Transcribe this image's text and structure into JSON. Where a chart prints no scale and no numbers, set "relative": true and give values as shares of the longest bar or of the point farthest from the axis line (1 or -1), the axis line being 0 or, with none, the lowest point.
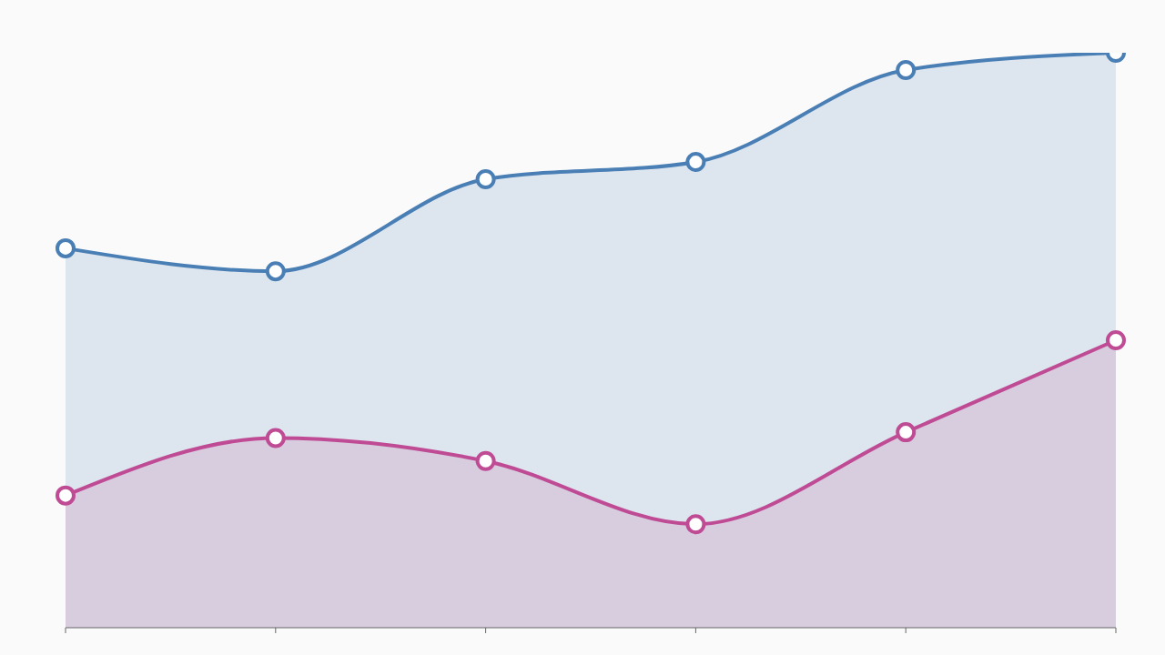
{
  "chart_data": {
    "type": "area",
    "relative": true,
    "marker": "circle",
    "categories": [
      null,
      null,
      null,
      null,
      null,
      null
    ],
    "series": [
      {
        "color": "#4a7fb5",
        "values": [
          0.66,
          0.62,
          0.78,
          0.81,
          0.97,
          1
        ]
      },
      {
        "color": "#c04b95",
        "values": [
          0.23,
          0.33,
          0.29,
          0.18,
          0.34,
          0.5
        ]
      }
    ]
  }
}
